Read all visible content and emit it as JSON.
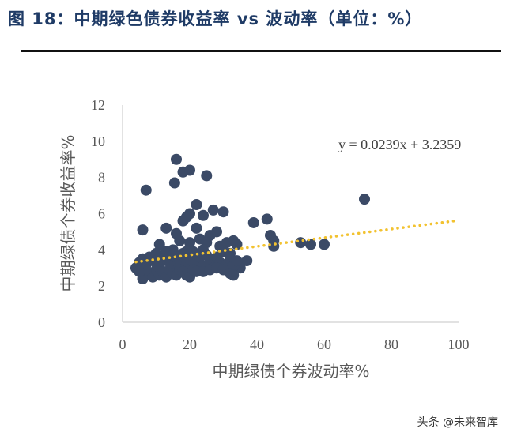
{
  "header": {
    "title": "图 18：中期绿色债券收益率 vs 波动率（单位：%）"
  },
  "watermark": "头条 @未来智库",
  "chart_data": {
    "type": "scatter",
    "title": "",
    "xlabel": "中期绿债个券波动率%",
    "ylabel": "中期绿债个券收益率%",
    "xlim": [
      0,
      100
    ],
    "ylim": [
      0,
      12
    ],
    "x_ticks": [
      "0",
      "20",
      "40",
      "60",
      "80",
      "100"
    ],
    "y_ticks": [
      "0",
      "2",
      "4",
      "6",
      "8",
      "10",
      "12"
    ],
    "grid": false,
    "colors": {
      "points": "#3b4a66",
      "trendline": "#f2c230",
      "axis": "#d9d9d9"
    },
    "trendline": {
      "label": "y = 0.0239x + 3.2359",
      "slope": 0.0239,
      "intercept": 3.2359,
      "x_range": [
        4,
        100
      ]
    },
    "points": [
      [
        16,
        9.0
      ],
      [
        18,
        8.3
      ],
      [
        20,
        8.4
      ],
      [
        25,
        8.1
      ],
      [
        15.5,
        7.7
      ],
      [
        7,
        7.3
      ],
      [
        72,
        6.8
      ],
      [
        22,
        6.5
      ],
      [
        27,
        6.2
      ],
      [
        30,
        6.1
      ],
      [
        20,
        6.0
      ],
      [
        19,
        5.8
      ],
      [
        24,
        5.9
      ],
      [
        18,
        5.6
      ],
      [
        39,
        5.5
      ],
      [
        43,
        5.7
      ],
      [
        22,
        5.2
      ],
      [
        13,
        5.2
      ],
      [
        6,
        5.1
      ],
      [
        16,
        4.9
      ],
      [
        28,
        5.0
      ],
      [
        44,
        4.8
      ],
      [
        45,
        4.5
      ],
      [
        45,
        4.2
      ],
      [
        53,
        4.4
      ],
      [
        56,
        4.3
      ],
      [
        60,
        4.3
      ],
      [
        33,
        4.5
      ],
      [
        34,
        4.3
      ],
      [
        31,
        4.4
      ],
      [
        20,
        4.4
      ],
      [
        23,
        4.6
      ],
      [
        26,
        4.8
      ],
      [
        11,
        4.3
      ],
      [
        17,
        4.5
      ],
      [
        25,
        4.4
      ],
      [
        29,
        4.2
      ],
      [
        15,
        4.0
      ],
      [
        24,
        4.0
      ],
      [
        19,
        3.9
      ],
      [
        32,
        3.8
      ],
      [
        37,
        3.4
      ],
      [
        35,
        3.0
      ],
      [
        4,
        3.0
      ],
      [
        5,
        3.3
      ],
      [
        6,
        3.5
      ],
      [
        7,
        3.2
      ],
      [
        8,
        3.6
      ],
      [
        9,
        3.4
      ],
      [
        10,
        3.8
      ],
      [
        11,
        3.1
      ],
      [
        12,
        3.6
      ],
      [
        13,
        3.9
      ],
      [
        14,
        3.3
      ],
      [
        15,
        3.7
      ],
      [
        16,
        3.1
      ],
      [
        17,
        3.4
      ],
      [
        18,
        3.8
      ],
      [
        19,
        3.2
      ],
      [
        20,
        3.5
      ],
      [
        21,
        3.9
      ],
      [
        22,
        3.3
      ],
      [
        23,
        3.6
      ],
      [
        24,
        3.1
      ],
      [
        25,
        3.7
      ],
      [
        26,
        3.4
      ],
      [
        27,
        3.0
      ],
      [
        28,
        3.6
      ],
      [
        29,
        3.3
      ],
      [
        30,
        3.9
      ],
      [
        31,
        3.2
      ],
      [
        32,
        3.5
      ],
      [
        33,
        3.1
      ],
      [
        34,
        3.4
      ],
      [
        6,
        2.4
      ],
      [
        8,
        2.7
      ],
      [
        9,
        2.5
      ],
      [
        10,
        2.9
      ],
      [
        11,
        2.6
      ],
      [
        12,
        2.8
      ],
      [
        13,
        2.5
      ],
      [
        14,
        2.9
      ],
      [
        15,
        2.7
      ],
      [
        16,
        2.6
      ],
      [
        17,
        2.9
      ],
      [
        18,
        2.8
      ],
      [
        19,
        2.6
      ],
      [
        20,
        2.5
      ],
      [
        21,
        2.9
      ],
      [
        22,
        2.8
      ],
      [
        24,
        2.8
      ],
      [
        26,
        2.9
      ],
      [
        28,
        3.0
      ],
      [
        30,
        2.9
      ],
      [
        32,
        2.7
      ],
      [
        33,
        2.6
      ],
      [
        7,
        2.9
      ],
      [
        5,
        2.8
      ]
    ]
  }
}
